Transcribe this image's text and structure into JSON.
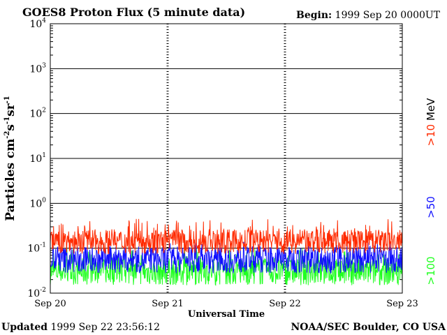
{
  "header": {
    "title": "GOES8 Proton Flux (5 minute data)",
    "begin_label": "Begin:",
    "begin_value": "1999 Sep 20 0000UT"
  },
  "footer": {
    "updated_label": "Updated",
    "updated_value": "1999 Sep 22 23:56:12",
    "source": "NOAA/SEC Boulder, CO USA"
  },
  "colors": {
    "red": "#ff2a00",
    "blue": "#1010ff",
    "green": "#20ff20",
    "axis": "#000000"
  },
  "chart_data": {
    "type": "line",
    "title": "GOES8 Proton Flux (5 minute data)",
    "xlabel": "Universal Time",
    "ylabel": "Particles cm-2s-1sr-1",
    "y_scale": "log",
    "ylim": [
      0.01,
      10000
    ],
    "y_ticks": [
      {
        "value": 10000,
        "base": "10",
        "exp": "4"
      },
      {
        "value": 1000,
        "base": "10",
        "exp": "3"
      },
      {
        "value": 100,
        "base": "10",
        "exp": "2"
      },
      {
        "value": 10,
        "base": "10",
        "exp": "1"
      },
      {
        "value": 1,
        "base": "10",
        "exp": "0"
      },
      {
        "value": 0.1,
        "base": "10",
        "exp": "-1"
      },
      {
        "value": 0.01,
        "base": "10",
        "exp": "-2"
      }
    ],
    "x_tick_labels": [
      "Sep 20",
      "Sep 21",
      "Sep 22",
      "Sep 23"
    ],
    "x_range_days": [
      0,
      3
    ],
    "grid": true,
    "right_labels": [
      {
        "text": ">10 MeV",
        "color": "#ff2a00"
      },
      {
        "text": ">50",
        "color": "#1010ff"
      },
      {
        "text": ">100",
        "color": "#20ff20"
      }
    ],
    "series": [
      {
        "name": ">10 MeV",
        "color": "#ff2a00",
        "baseline": 0.14,
        "spread": 0.55,
        "spike_max": 0.45
      },
      {
        "name": ">50",
        "color": "#1010ff",
        "baseline": 0.055,
        "spread": 0.6,
        "spike_max": 0.14
      },
      {
        "name": ">100",
        "color": "#20ff20",
        "baseline": 0.03,
        "spread": 0.6,
        "spike_max": 0.1
      }
    ]
  }
}
